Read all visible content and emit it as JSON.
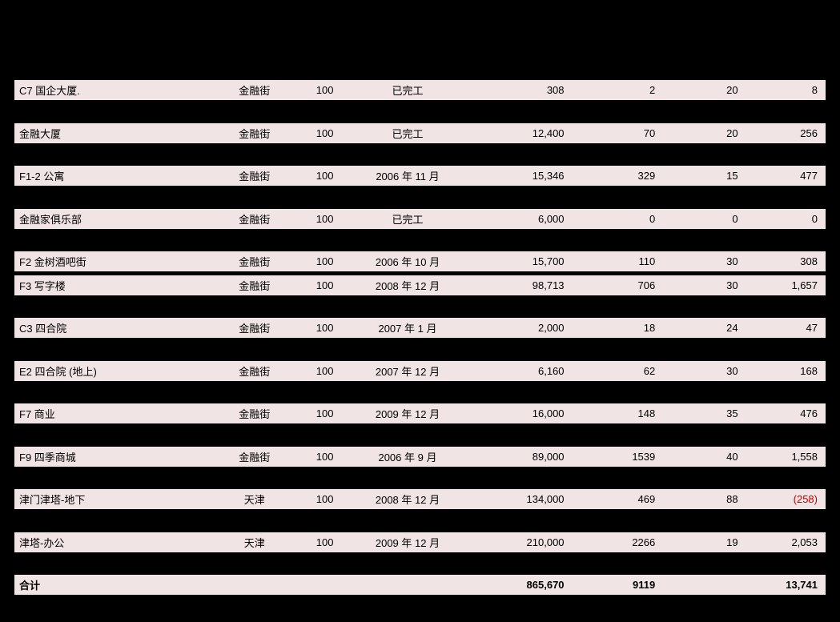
{
  "table": {
    "background_row_color": "#f0e4e4",
    "background_gap_color": "#000000",
    "text_color": "#000000",
    "negative_color": "#c00000",
    "font_size": 13,
    "columns": [
      "name",
      "location",
      "percent",
      "date",
      "num1",
      "num2",
      "num3",
      "num4"
    ],
    "rows": [
      {
        "name": "C7 国企大厦.",
        "location": "金融街",
        "percent": "100",
        "date": "已完工",
        "num1": "308",
        "num2": "2",
        "num3": "20",
        "num4": "8"
      },
      {
        "name": "金融大厦",
        "location": "金融街",
        "percent": "100",
        "date": "已完工",
        "num1": "12,400",
        "num2": "70",
        "num3": "20",
        "num4": "256"
      },
      {
        "name": "F1-2 公寓",
        "location": "金融街",
        "percent": "100",
        "date": "2006 年 11 月",
        "num1": "15,346",
        "num2": "329",
        "num3": "15",
        "num4": "477"
      },
      {
        "name": "金融家俱乐部",
        "location": "金融街",
        "percent": "100",
        "date": "已完工",
        "num1": "6,000",
        "num2": "0",
        "num3": "0",
        "num4": "0"
      },
      {
        "name": "F2 金树酒吧街",
        "location": "金融街",
        "percent": "100",
        "date": "2006 年 10 月",
        "num1": "15,700",
        "num2": "110",
        "num3": "30",
        "num4": "308"
      },
      {
        "name": "F3 写字楼",
        "location": "金融街",
        "percent": "100",
        "date": "2008 年 12 月",
        "num1": "98,713",
        "num2": "706",
        "num3": "30",
        "num4": "1,657"
      },
      {
        "name": "C3 四合院",
        "location": "金融街",
        "percent": "100",
        "date": "2007 年 1 月",
        "num1": "2,000",
        "num2": "18",
        "num3": "24",
        "num4": "47"
      },
      {
        "name": "E2 四合院 (地上)",
        "location": "金融街",
        "percent": "100",
        "date": "2007 年 12 月",
        "num1": "6,160",
        "num2": "62",
        "num3": "30",
        "num4": "168"
      },
      {
        "name": "F7 商业",
        "location": "金融街",
        "percent": "100",
        "date": "2009 年 12 月",
        "num1": "16,000",
        "num2": "148",
        "num3": "35",
        "num4": "476"
      },
      {
        "name": "F9 四季商城",
        "location": "金融街",
        "percent": "100",
        "date": "2006 年 9 月",
        "num1": "89,000",
        "num2": "1539",
        "num3": "40",
        "num4": "1,558"
      },
      {
        "name": "津门津塔-地下",
        "location": "天津",
        "percent": "100",
        "date": "2008 年 12 月",
        "num1": "134,000",
        "num2": "469",
        "num3": "88",
        "num4": "(258)",
        "negative": true
      },
      {
        "name": "津塔-办公",
        "location": "天津",
        "percent": "100",
        "date": "2009 年 12 月",
        "num1": "210,000",
        "num2": "2266",
        "num3": "19",
        "num4": "2,053"
      }
    ],
    "grouped_pairs": {
      "pair_after_index": 4,
      "description": "Rows at indices 4 and 5 (F2, F3) are grouped without a large gap"
    },
    "total": {
      "name": "合计",
      "num1": "865,670",
      "num2": "9119",
      "num4": "13,741"
    }
  }
}
